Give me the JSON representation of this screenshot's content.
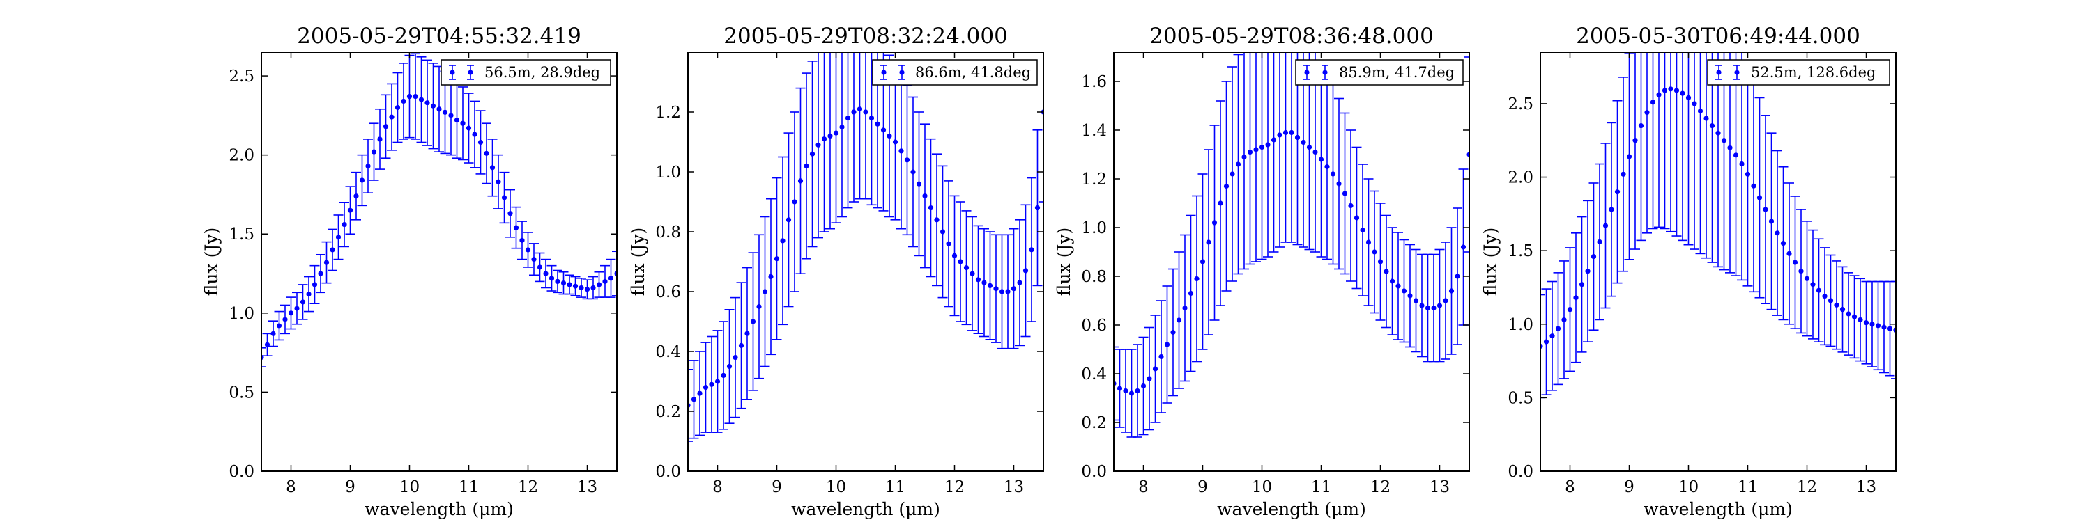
{
  "figure": {
    "marker_color": "#0000ff"
  },
  "chart_data": [
    {
      "type": "scatter",
      "title": "2005-05-29T04:55:32.419",
      "xlabel": "wavelength (μm)",
      "ylabel": "flux (Jy)",
      "legend": "56.5m, 28.9deg",
      "legend_position": "top-right",
      "xlim": [
        7.5,
        13.5
      ],
      "ylim": [
        0.0,
        2.65
      ],
      "xticks": [
        8,
        9,
        10,
        11,
        12,
        13
      ],
      "yticks": [
        0.0,
        0.5,
        1.0,
        1.5,
        2.0,
        2.5
      ],
      "x": [
        7.5,
        7.6,
        7.7,
        7.8,
        7.9,
        8.0,
        8.1,
        8.2,
        8.3,
        8.4,
        8.5,
        8.6,
        8.7,
        8.8,
        8.9,
        9.0,
        9.1,
        9.2,
        9.3,
        9.4,
        9.5,
        9.6,
        9.7,
        9.8,
        9.9,
        10.0,
        10.1,
        10.2,
        10.3,
        10.4,
        10.5,
        10.6,
        10.7,
        10.8,
        10.9,
        11.0,
        11.1,
        11.2,
        11.3,
        11.4,
        11.5,
        11.6,
        11.7,
        11.8,
        11.9,
        12.0,
        12.1,
        12.2,
        12.3,
        12.4,
        12.5,
        12.6,
        12.7,
        12.8,
        12.9,
        13.0,
        13.1,
        13.2,
        13.3,
        13.4,
        13.5
      ],
      "y": [
        0.72,
        0.8,
        0.87,
        0.92,
        0.96,
        1.0,
        1.03,
        1.07,
        1.12,
        1.18,
        1.25,
        1.32,
        1.4,
        1.48,
        1.56,
        1.65,
        1.74,
        1.84,
        1.93,
        2.02,
        2.1,
        2.18,
        2.24,
        2.3,
        2.34,
        2.37,
        2.37,
        2.35,
        2.33,
        2.31,
        2.29,
        2.27,
        2.25,
        2.22,
        2.2,
        2.17,
        2.13,
        2.08,
        2.01,
        1.92,
        1.83,
        1.73,
        1.63,
        1.54,
        1.46,
        1.4,
        1.34,
        1.29,
        1.25,
        1.22,
        1.2,
        1.19,
        1.18,
        1.17,
        1.16,
        1.15,
        1.16,
        1.18,
        1.2,
        1.22,
        1.25
      ],
      "yerr": [
        0.06,
        0.07,
        0.08,
        0.09,
        0.09,
        0.1,
        0.1,
        0.11,
        0.11,
        0.12,
        0.12,
        0.13,
        0.13,
        0.14,
        0.14,
        0.15,
        0.15,
        0.16,
        0.17,
        0.18,
        0.19,
        0.2,
        0.21,
        0.22,
        0.24,
        0.26,
        0.27,
        0.27,
        0.27,
        0.27,
        0.27,
        0.26,
        0.25,
        0.24,
        0.23,
        0.22,
        0.21,
        0.2,
        0.19,
        0.18,
        0.17,
        0.16,
        0.15,
        0.13,
        0.12,
        0.11,
        0.1,
        0.09,
        0.09,
        0.08,
        0.07,
        0.07,
        0.06,
        0.06,
        0.06,
        0.06,
        0.07,
        0.08,
        0.1,
        0.12,
        0.14
      ]
    },
    {
      "type": "scatter",
      "title": "2005-05-29T08:32:24.000",
      "xlabel": "wavelength (μm)",
      "ylabel": "flux (Jy)",
      "legend": "86.6m, 41.8deg",
      "legend_position": "top-right",
      "xlim": [
        7.5,
        13.5
      ],
      "ylim": [
        0.0,
        1.4
      ],
      "xticks": [
        8,
        9,
        10,
        11,
        12,
        13
      ],
      "yticks": [
        0.0,
        0.2,
        0.4,
        0.6,
        0.8,
        1.0,
        1.2
      ],
      "x": [
        7.5,
        7.6,
        7.7,
        7.8,
        7.9,
        8.0,
        8.1,
        8.2,
        8.3,
        8.4,
        8.5,
        8.6,
        8.7,
        8.8,
        8.9,
        9.0,
        9.1,
        9.2,
        9.3,
        9.4,
        9.5,
        9.6,
        9.7,
        9.8,
        9.9,
        10.0,
        10.1,
        10.2,
        10.3,
        10.4,
        10.5,
        10.6,
        10.7,
        10.8,
        10.9,
        11.0,
        11.1,
        11.2,
        11.3,
        11.4,
        11.5,
        11.6,
        11.7,
        11.8,
        11.9,
        12.0,
        12.1,
        12.2,
        12.3,
        12.4,
        12.5,
        12.6,
        12.7,
        12.8,
        12.9,
        13.0,
        13.1,
        13.2,
        13.3,
        13.4,
        13.5
      ],
      "y": [
        0.22,
        0.24,
        0.26,
        0.28,
        0.29,
        0.3,
        0.32,
        0.35,
        0.38,
        0.42,
        0.46,
        0.5,
        0.55,
        0.6,
        0.65,
        0.71,
        0.77,
        0.84,
        0.9,
        0.97,
        1.02,
        1.06,
        1.09,
        1.11,
        1.12,
        1.13,
        1.15,
        1.18,
        1.2,
        1.21,
        1.2,
        1.18,
        1.16,
        1.14,
        1.12,
        1.1,
        1.07,
        1.04,
        1.0,
        0.96,
        0.92,
        0.88,
        0.84,
        0.8,
        0.76,
        0.72,
        0.7,
        0.68,
        0.66,
        0.64,
        0.63,
        0.62,
        0.61,
        0.6,
        0.6,
        0.61,
        0.63,
        0.67,
        0.74,
        0.88,
        1.2
      ],
      "yerr": [
        0.12,
        0.13,
        0.14,
        0.15,
        0.16,
        0.17,
        0.18,
        0.19,
        0.2,
        0.21,
        0.22,
        0.23,
        0.24,
        0.25,
        0.26,
        0.27,
        0.28,
        0.29,
        0.3,
        0.31,
        0.31,
        0.31,
        0.31,
        0.31,
        0.31,
        0.3,
        0.3,
        0.3,
        0.3,
        0.3,
        0.29,
        0.29,
        0.28,
        0.27,
        0.27,
        0.26,
        0.26,
        0.25,
        0.25,
        0.24,
        0.24,
        0.23,
        0.22,
        0.22,
        0.21,
        0.2,
        0.2,
        0.19,
        0.19,
        0.18,
        0.18,
        0.18,
        0.18,
        0.19,
        0.19,
        0.2,
        0.21,
        0.22,
        0.24,
        0.26,
        0.3
      ]
    },
    {
      "type": "scatter",
      "title": "2005-05-29T08:36:48.000",
      "xlabel": "wavelength (μm)",
      "ylabel": "flux (Jy)",
      "legend": "85.9m, 41.7deg",
      "legend_position": "top-right",
      "xlim": [
        7.5,
        13.5
      ],
      "ylim": [
        0.0,
        1.72
      ],
      "xticks": [
        8,
        9,
        10,
        11,
        12,
        13
      ],
      "yticks": [
        0.0,
        0.2,
        0.4,
        0.6,
        0.8,
        1.0,
        1.2,
        1.4,
        1.6
      ],
      "x": [
        7.5,
        7.6,
        7.7,
        7.8,
        7.9,
        8.0,
        8.1,
        8.2,
        8.3,
        8.4,
        8.5,
        8.6,
        8.7,
        8.8,
        8.9,
        9.0,
        9.1,
        9.2,
        9.3,
        9.4,
        9.5,
        9.6,
        9.7,
        9.8,
        9.9,
        10.0,
        10.1,
        10.2,
        10.3,
        10.4,
        10.5,
        10.6,
        10.7,
        10.8,
        10.9,
        11.0,
        11.1,
        11.2,
        11.3,
        11.4,
        11.5,
        11.6,
        11.7,
        11.8,
        11.9,
        12.0,
        12.1,
        12.2,
        12.3,
        12.4,
        12.5,
        12.6,
        12.7,
        12.8,
        12.9,
        13.0,
        13.1,
        13.2,
        13.3,
        13.4,
        13.5
      ],
      "y": [
        0.36,
        0.34,
        0.33,
        0.32,
        0.33,
        0.35,
        0.38,
        0.42,
        0.47,
        0.52,
        0.57,
        0.62,
        0.67,
        0.73,
        0.79,
        0.86,
        0.94,
        1.02,
        1.1,
        1.17,
        1.22,
        1.26,
        1.29,
        1.31,
        1.32,
        1.33,
        1.34,
        1.36,
        1.38,
        1.39,
        1.39,
        1.37,
        1.35,
        1.33,
        1.31,
        1.28,
        1.25,
        1.22,
        1.18,
        1.14,
        1.09,
        1.04,
        0.99,
        0.94,
        0.9,
        0.86,
        0.82,
        0.78,
        0.76,
        0.74,
        0.72,
        0.7,
        0.68,
        0.67,
        0.67,
        0.68,
        0.7,
        0.74,
        0.8,
        0.92,
        1.3
      ],
      "yerr": [
        0.15,
        0.16,
        0.17,
        0.18,
        0.19,
        0.2,
        0.21,
        0.22,
        0.23,
        0.24,
        0.26,
        0.28,
        0.3,
        0.32,
        0.34,
        0.36,
        0.38,
        0.4,
        0.42,
        0.43,
        0.44,
        0.45,
        0.46,
        0.46,
        0.46,
        0.46,
        0.46,
        0.46,
        0.46,
        0.45,
        0.45,
        0.44,
        0.43,
        0.42,
        0.41,
        0.4,
        0.38,
        0.37,
        0.35,
        0.33,
        0.31,
        0.29,
        0.27,
        0.26,
        0.25,
        0.24,
        0.23,
        0.22,
        0.22,
        0.21,
        0.21,
        0.21,
        0.21,
        0.22,
        0.22,
        0.23,
        0.24,
        0.26,
        0.28,
        0.32,
        0.4
      ]
    },
    {
      "type": "scatter",
      "title": "2005-05-30T06:49:44.000",
      "xlabel": "wavelength (μm)",
      "ylabel": "flux (Jy)",
      "legend": "52.5m, 128.6deg",
      "legend_position": "top-right",
      "xlim": [
        7.5,
        13.5
      ],
      "ylim": [
        0.0,
        2.85
      ],
      "xticks": [
        8,
        9,
        10,
        11,
        12,
        13
      ],
      "yticks": [
        0.0,
        0.5,
        1.0,
        1.5,
        2.0,
        2.5
      ],
      "x": [
        7.5,
        7.6,
        7.7,
        7.8,
        7.9,
        8.0,
        8.1,
        8.2,
        8.3,
        8.4,
        8.5,
        8.6,
        8.7,
        8.8,
        8.9,
        9.0,
        9.1,
        9.2,
        9.3,
        9.4,
        9.5,
        9.6,
        9.7,
        9.8,
        9.9,
        10.0,
        10.1,
        10.2,
        10.3,
        10.4,
        10.5,
        10.6,
        10.7,
        10.8,
        10.9,
        11.0,
        11.1,
        11.2,
        11.3,
        11.4,
        11.5,
        11.6,
        11.7,
        11.8,
        11.9,
        12.0,
        12.1,
        12.2,
        12.3,
        12.4,
        12.5,
        12.6,
        12.7,
        12.8,
        12.9,
        13.0,
        13.1,
        13.2,
        13.3,
        13.4,
        13.5
      ],
      "y": [
        0.85,
        0.88,
        0.92,
        0.97,
        1.03,
        1.1,
        1.18,
        1.27,
        1.36,
        1.46,
        1.56,
        1.67,
        1.78,
        1.9,
        2.02,
        2.14,
        2.25,
        2.35,
        2.44,
        2.51,
        2.56,
        2.59,
        2.6,
        2.59,
        2.57,
        2.54,
        2.5,
        2.45,
        2.4,
        2.35,
        2.3,
        2.25,
        2.2,
        2.15,
        2.09,
        2.02,
        1.94,
        1.86,
        1.78,
        1.7,
        1.62,
        1.55,
        1.48,
        1.42,
        1.36,
        1.31,
        1.27,
        1.23,
        1.19,
        1.16,
        1.13,
        1.1,
        1.07,
        1.05,
        1.03,
        1.01,
        1.0,
        0.99,
        0.98,
        0.97,
        0.96
      ],
      "yerr": [
        0.35,
        0.36,
        0.37,
        0.38,
        0.4,
        0.42,
        0.44,
        0.46,
        0.48,
        0.5,
        0.53,
        0.56,
        0.59,
        0.62,
        0.66,
        0.7,
        0.74,
        0.78,
        0.82,
        0.86,
        0.9,
        0.94,
        0.97,
        0.99,
        1.0,
        1.0,
        0.99,
        0.97,
        0.95,
        0.93,
        0.91,
        0.88,
        0.85,
        0.82,
        0.79,
        0.76,
        0.72,
        0.68,
        0.64,
        0.6,
        0.56,
        0.52,
        0.48,
        0.45,
        0.42,
        0.39,
        0.37,
        0.35,
        0.33,
        0.31,
        0.3,
        0.29,
        0.28,
        0.28,
        0.28,
        0.28,
        0.29,
        0.3,
        0.31,
        0.32,
        0.33
      ]
    }
  ]
}
